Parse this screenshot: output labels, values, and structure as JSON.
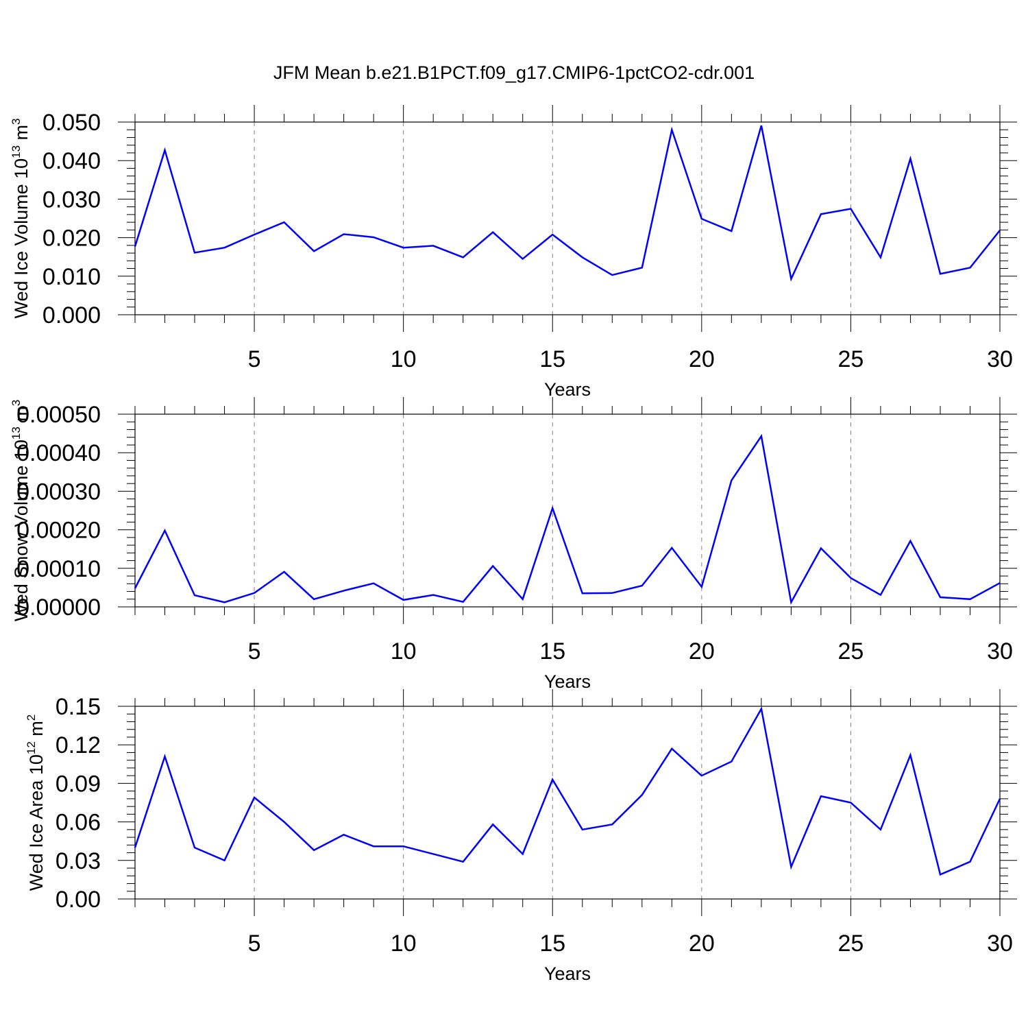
{
  "title": "JFM Mean b.e21.B1PCT.f09_g17.CMIP6-1pctCO2-cdr.001",
  "colors": {
    "line": "#0000ff",
    "axis": "#000000",
    "grid": "#808080"
  },
  "chart_data": [
    {
      "type": "line",
      "xlabel": "Years",
      "ylabel": "Wed Ice Volume 10",
      "ylabel_exponent": "13",
      "ylabel_unit": "m",
      "ylabel_unit_exponent": "3",
      "xlim": [
        1,
        30
      ],
      "ylim": [
        0,
        0.05
      ],
      "xticks": [
        5,
        10,
        15,
        20,
        25,
        30
      ],
      "xtick_labels": [
        "5",
        "10",
        "15",
        "20",
        "25",
        "30"
      ],
      "yticks": [
        0,
        0.01,
        0.02,
        0.03,
        0.04,
        0.05
      ],
      "ytick_labels": [
        "0.000",
        "0.010",
        "0.020",
        "0.030",
        "0.040",
        "0.050"
      ],
      "grid": "vertical dashed at major x ticks",
      "x": [
        1,
        2,
        3,
        4,
        5,
        6,
        7,
        8,
        9,
        10,
        11,
        12,
        13,
        14,
        15,
        16,
        17,
        18,
        19,
        20,
        21,
        22,
        23,
        24,
        25,
        26,
        27,
        28,
        29,
        30
      ],
      "series": [
        {
          "name": "Wed Ice Volume",
          "values": [
            0.0177,
            0.0427,
            0.0161,
            0.0174,
            0.0208,
            0.024,
            0.0165,
            0.0209,
            0.0201,
            0.0174,
            0.0179,
            0.0149,
            0.0214,
            0.0145,
            0.0208,
            0.0149,
            0.0103,
            0.0122,
            0.048,
            0.0249,
            0.0217,
            0.0491,
            0.0093,
            0.0261,
            0.0275,
            0.0149,
            0.0405,
            0.0106,
            0.0122,
            0.0219
          ]
        }
      ]
    },
    {
      "type": "line",
      "xlabel": "Years",
      "ylabel": "Wed Snow Volume 10",
      "ylabel_exponent": "13",
      "ylabel_unit": "m",
      "ylabel_unit_exponent": "3",
      "xlim": [
        1,
        30
      ],
      "ylim": [
        0,
        0.0005
      ],
      "xticks": [
        5,
        10,
        15,
        20,
        25,
        30
      ],
      "xtick_labels": [
        "5",
        "10",
        "15",
        "20",
        "25",
        "30"
      ],
      "yticks": [
        0,
        0.0001,
        0.0002,
        0.0003,
        0.0004,
        0.0005
      ],
      "ytick_labels": [
        "0.00000",
        "0.00010",
        "0.00020",
        "0.00030",
        "0.00040",
        "0.00050"
      ],
      "grid": "vertical dashed at major x ticks",
      "x": [
        1,
        2,
        3,
        4,
        5,
        6,
        7,
        8,
        9,
        10,
        11,
        12,
        13,
        14,
        15,
        16,
        17,
        18,
        19,
        20,
        21,
        22,
        23,
        24,
        25,
        26,
        27,
        28,
        29,
        30
      ],
      "series": [
        {
          "name": "Wed Snow Volume",
          "values": [
            4.8e-05,
            0.000198,
            3e-05,
            1.2e-05,
            3.6e-05,
            9.1e-05,
            2e-05,
            4.2e-05,
            6.1e-05,
            1.8e-05,
            3.1e-05,
            1.3e-05,
            0.000106,
            2e-05,
            0.000256,
            3.5e-05,
            3.6e-05,
            5.5e-05,
            0.000153,
            5.2e-05,
            0.000328,
            0.000443,
            1.2e-05,
            0.000152,
            7.5e-05,
            3.1e-05,
            0.000171,
            2.5e-05,
            2e-05,
            6.2e-05
          ]
        }
      ]
    },
    {
      "type": "line",
      "xlabel": "Years",
      "ylabel": "Wed Ice Area 10",
      "ylabel_exponent": "12",
      "ylabel_unit": "m",
      "ylabel_unit_exponent": "2",
      "xlim": [
        1,
        30
      ],
      "ylim": [
        0,
        0.15
      ],
      "xticks": [
        5,
        10,
        15,
        20,
        25,
        30
      ],
      "xtick_labels": [
        "5",
        "10",
        "15",
        "20",
        "25",
        "30"
      ],
      "yticks": [
        0,
        0.03,
        0.06,
        0.09,
        0.12,
        0.15
      ],
      "ytick_labels": [
        "0.00",
        "0.03",
        "0.06",
        "0.09",
        "0.12",
        "0.15"
      ],
      "grid": "vertical dashed at major x ticks",
      "x": [
        1,
        2,
        3,
        4,
        5,
        6,
        7,
        8,
        9,
        10,
        11,
        12,
        13,
        14,
        15,
        16,
        17,
        18,
        19,
        20,
        21,
        22,
        23,
        24,
        25,
        26,
        27,
        28,
        29,
        30
      ],
      "series": [
        {
          "name": "Wed Ice Area",
          "values": [
            0.04,
            0.111,
            0.04,
            0.03,
            0.079,
            0.06,
            0.038,
            0.05,
            0.041,
            0.041,
            0.035,
            0.029,
            0.058,
            0.035,
            0.093,
            0.054,
            0.058,
            0.081,
            0.117,
            0.096,
            0.107,
            0.148,
            0.025,
            0.08,
            0.075,
            0.054,
            0.112,
            0.019,
            0.029,
            0.078
          ]
        }
      ]
    }
  ]
}
